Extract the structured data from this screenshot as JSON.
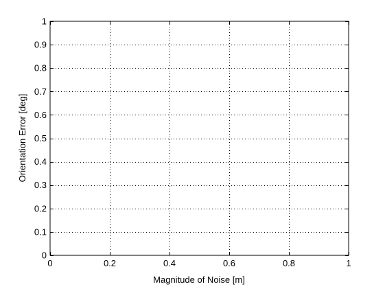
{
  "chart_data": {
    "type": "line",
    "title": "",
    "xlabel": "Magnitude of Noise [m]",
    "ylabel": "Orientation Error [deg]",
    "xlim": [
      0,
      1
    ],
    "ylim": [
      0,
      1
    ],
    "xticks": [
      "0",
      "0.2",
      "0.4",
      "0.6",
      "0.8",
      "1"
    ],
    "yticks": [
      "0",
      "0.1",
      "0.2",
      "0.3",
      "0.4",
      "0.5",
      "0.6",
      "0.7",
      "0.8",
      "0.9",
      "1"
    ],
    "grid": true,
    "series": []
  }
}
